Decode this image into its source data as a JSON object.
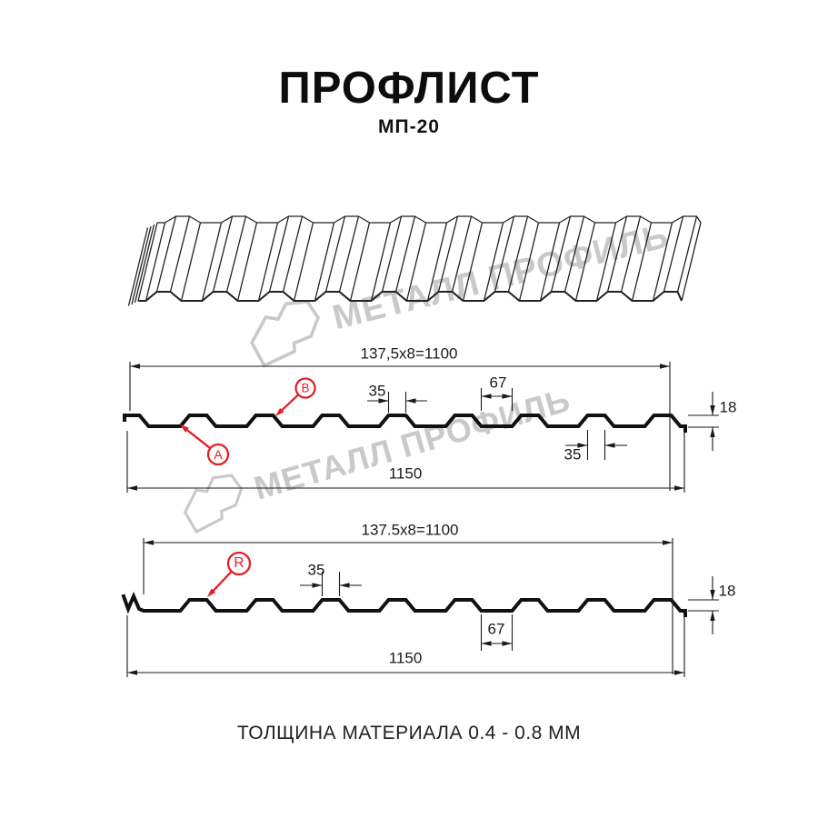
{
  "header": {
    "title": "ПРОФЛИСТ",
    "subtitle": "МП-20"
  },
  "watermark": {
    "brand": "МЕТАЛЛ ПРОФИЛЬ"
  },
  "diagram_top": {
    "pitch_label": "137,5x8=1100",
    "rib_top_width": "35",
    "groove_width": "67",
    "profile_height": "18",
    "rib_top_width_right": "35",
    "overall_width": "1150",
    "point_a": "A",
    "point_b": "B"
  },
  "diagram_bottom": {
    "pitch_label": "137.5x8=1100",
    "rib_top_width": "35",
    "groove_width": "67",
    "profile_height": "18",
    "overall_width": "1150",
    "point_r": "R"
  },
  "footer": {
    "note": "ТОЛЩИНА МАТЕРИАЛА 0.4 - 0.8 ММ"
  },
  "colors": {
    "ink": "#1a1a1a",
    "accent_red": "#e32124",
    "watermark_gray": "#c9c9c9"
  }
}
